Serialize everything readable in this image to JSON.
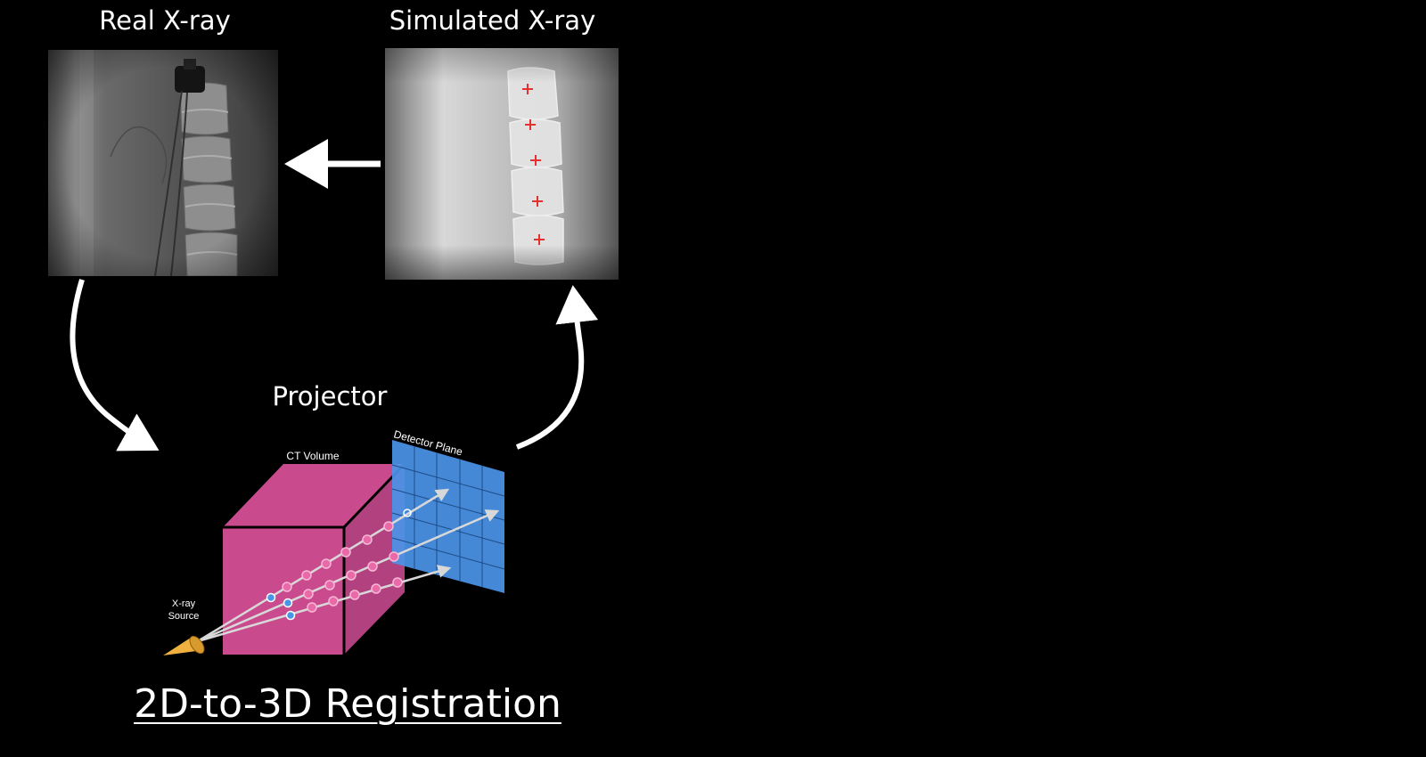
{
  "titles": {
    "real": "Real X-ray",
    "simulated": "Simulated X-ray",
    "projector": "Projector",
    "main": "2D-to-3D Registration"
  },
  "labels": {
    "ct_volume": "CT Volume",
    "detector_plane": "Detector Plane",
    "source_line1": "X-ray",
    "source_line2": "Source"
  },
  "colors": {
    "background": "#000000",
    "ct_volume": "#c94b8e",
    "detector": "#4a94e8",
    "source": "#f0b040",
    "marker": "#e53030",
    "arrow": "#ffffff"
  }
}
